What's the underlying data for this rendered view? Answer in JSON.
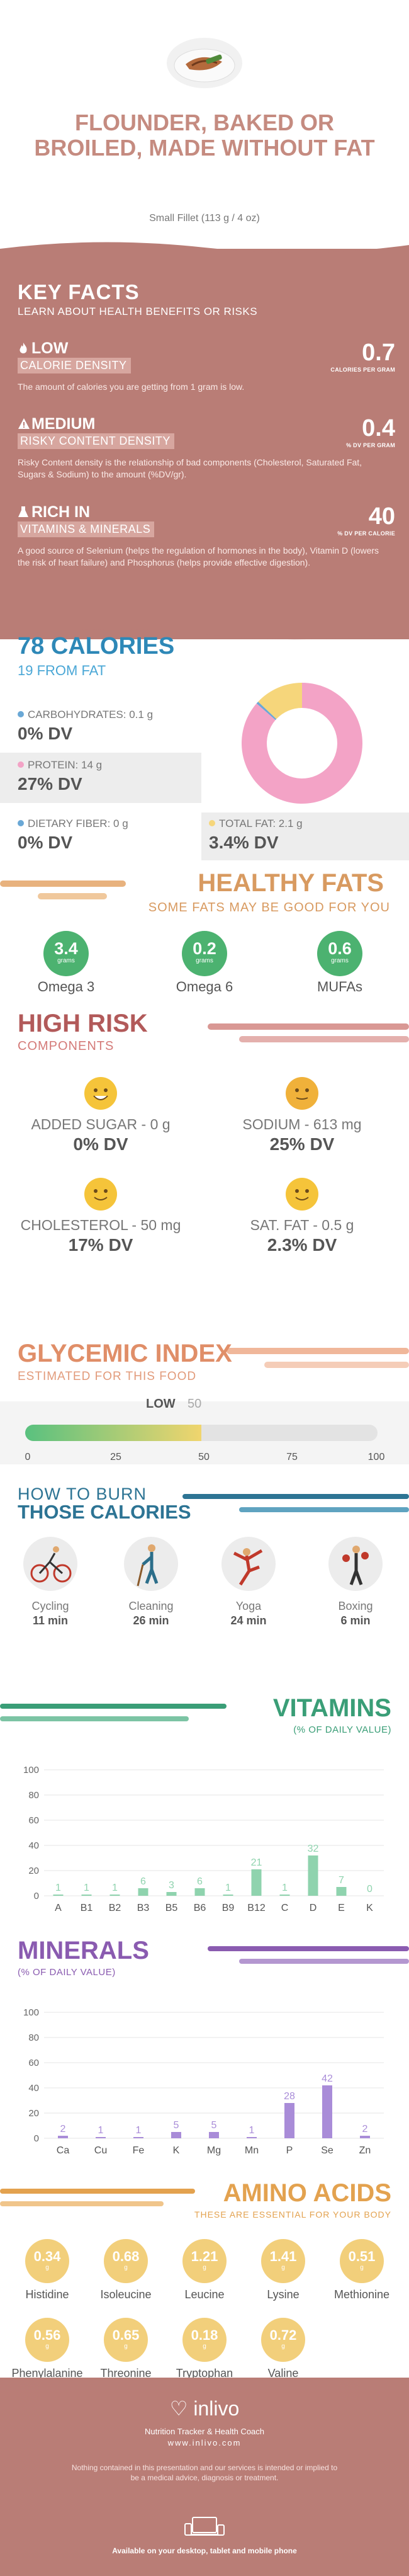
{
  "header": {
    "title": "FLOUNDER, BAKED OR BROILED, MADE WITHOUT FAT",
    "serving": "Small Fillet (113 g / 4 oz)"
  },
  "key_facts": {
    "title": "KEY FACTS",
    "subtitle": "LEARN ABOUT HEALTH BENEFITS OR RISKS",
    "items": [
      {
        "label": "LOW",
        "band": "CALORIE DENSITY",
        "value": "0.7",
        "unit": "CALORIES PER GRAM",
        "desc": "The amount of calories you are getting from 1 gram is low.",
        "icon": "flame-icon"
      },
      {
        "label": "MEDIUM",
        "band": "RISKY CONTENT DENSITY",
        "value": "0.4",
        "unit": "% DV PER GRAM",
        "desc": "Risky Content density is the relationship of bad components (Cholesterol, Saturated Fat, Sugars & Sodium) to the amount (%DV/gr).",
        "icon": "warning-icon"
      },
      {
        "label": "RICH IN",
        "band": "VITAMINS & MINERALS",
        "value": "40",
        "unit": "% DV PER CALORIE",
        "desc": "A good source of Selenium (helps the regulation of hormones in the body), Vitamin D (lowers the risk of heart failure) and Phosphorus (helps provide effective digestion).",
        "icon": "flask-icon"
      }
    ]
  },
  "calories": {
    "title": "78 CALORIES",
    "from_fat": "19 FROM FAT",
    "carbs": {
      "label": "CARBOHYDRATES: 0.1 g",
      "dv": "0% DV",
      "color": "#6aa8d6"
    },
    "protein": {
      "label": "PROTEIN: 14 g",
      "dv": "27% DV",
      "color": "#f3a3c6"
    },
    "fiber": {
      "label": "DIETARY FIBER: 0 g",
      "dv": "0% DV",
      "color": "#6aa8d6"
    },
    "fat": {
      "label": "TOTAL FAT: 2.1 g",
      "dv": "3.4% DV",
      "color": "#f6d67b"
    }
  },
  "chart_data": {
    "type": "pie",
    "categories": [
      "Protein",
      "Fat",
      "Carbohydrates"
    ],
    "values": [
      14,
      2.1,
      0.1
    ],
    "colors": [
      "#f3a3c6",
      "#f6d67b",
      "#6aa8d6"
    ]
  },
  "healthy_fats": {
    "title": "HEALTHY FATS",
    "subtitle": "SOME FATS MAY BE GOOD FOR YOU",
    "unit": "grams",
    "items": [
      {
        "value": "3.4",
        "name": "Omega 3"
      },
      {
        "value": "0.2",
        "name": "Omega 6"
      },
      {
        "value": "0.6",
        "name": "MUFAs"
      }
    ]
  },
  "high_risk": {
    "title": "HIGH RISK",
    "subtitle": "COMPONENTS",
    "items": [
      {
        "label": "ADDED SUGAR - 0 g",
        "dv": "0% DV",
        "face": "#f5c43a"
      },
      {
        "label": "SODIUM - 613 mg",
        "dv": "25% DV",
        "face": "#f0b13a"
      },
      {
        "label": "CHOLESTEROL - 50 mg",
        "dv": "17% DV",
        "face": "#f5c43a"
      },
      {
        "label": "SAT. FAT - 0.5 g",
        "dv": "2.3% DV",
        "face": "#f5c43a"
      }
    ]
  },
  "glycemic": {
    "title": "GLYCEMIC INDEX",
    "subtitle": "ESTIMATED FOR THIS FOOD",
    "level": "LOW",
    "value": "50",
    "fill_fraction": 0.5,
    "ticks": [
      "0",
      "25",
      "50",
      "75",
      "100"
    ]
  },
  "burn": {
    "line1": "HOW TO BURN",
    "line2": "THOSE CALORIES",
    "items": [
      {
        "name": "Cycling",
        "time": "11 min",
        "icon": "cycling-icon"
      },
      {
        "name": "Cleaning",
        "time": "26 min",
        "icon": "cleaning-icon"
      },
      {
        "name": "Yoga",
        "time": "24 min",
        "icon": "yoga-icon"
      },
      {
        "name": "Boxing",
        "time": "6 min",
        "icon": "boxing-icon"
      }
    ]
  },
  "vitamins": {
    "title": "VITAMINS",
    "subtitle": "(% OF DAILY VALUE)",
    "color": "#8fd3ae",
    "chart": {
      "type": "bar",
      "categories": [
        "A",
        "B1",
        "B2",
        "B3",
        "B5",
        "B6",
        "B9",
        "B12",
        "C",
        "D",
        "E",
        "K"
      ],
      "values": [
        1,
        1,
        1,
        6,
        3,
        6,
        1,
        21,
        1,
        32,
        7,
        0
      ],
      "ylim": [
        0,
        100
      ],
      "yticks": [
        "0",
        "20",
        "40",
        "60",
        "80",
        "100"
      ]
    }
  },
  "minerals": {
    "title": "MINERALS",
    "subtitle": "(% OF DAILY VALUE)",
    "color": "#a98cd8",
    "chart": {
      "type": "bar",
      "categories": [
        "Ca",
        "Cu",
        "Fe",
        "K",
        "Mg",
        "Mn",
        "P",
        "Se",
        "Zn"
      ],
      "values": [
        2,
        1,
        1,
        5,
        5,
        1,
        28,
        42,
        2
      ],
      "ylim": [
        0,
        100
      ],
      "yticks": [
        "0",
        "20",
        "40",
        "60",
        "80",
        "100"
      ]
    }
  },
  "amino": {
    "title": "AMINO ACIDS",
    "subtitle": "THESE ARE ESSENTIAL FOR YOUR BODY",
    "unit": "g",
    "items": [
      {
        "value": "0.34",
        "name": "Histidine"
      },
      {
        "value": "0.68",
        "name": "Isoleucine"
      },
      {
        "value": "1.21",
        "name": "Leucine"
      },
      {
        "value": "1.41",
        "name": "Lysine"
      },
      {
        "value": "0.51",
        "name": "Methionine"
      },
      {
        "value": "0.56",
        "name": "Phenylalanine"
      },
      {
        "value": "0.65",
        "name": "Threonine"
      },
      {
        "value": "0.18",
        "name": "Tryptophan"
      },
      {
        "value": "0.72",
        "name": "Valine"
      }
    ]
  },
  "footer": {
    "brand": "inlivo",
    "tagline": "Nutrition Tracker & Health Coach",
    "url": "www.inlivo.com",
    "disclaimer": "Nothing contained in this presentation and our services is intended or implied to be a medical advice, diagnosis or treatment.",
    "availability": "Available on your desktop, tablet and mobile phone"
  }
}
